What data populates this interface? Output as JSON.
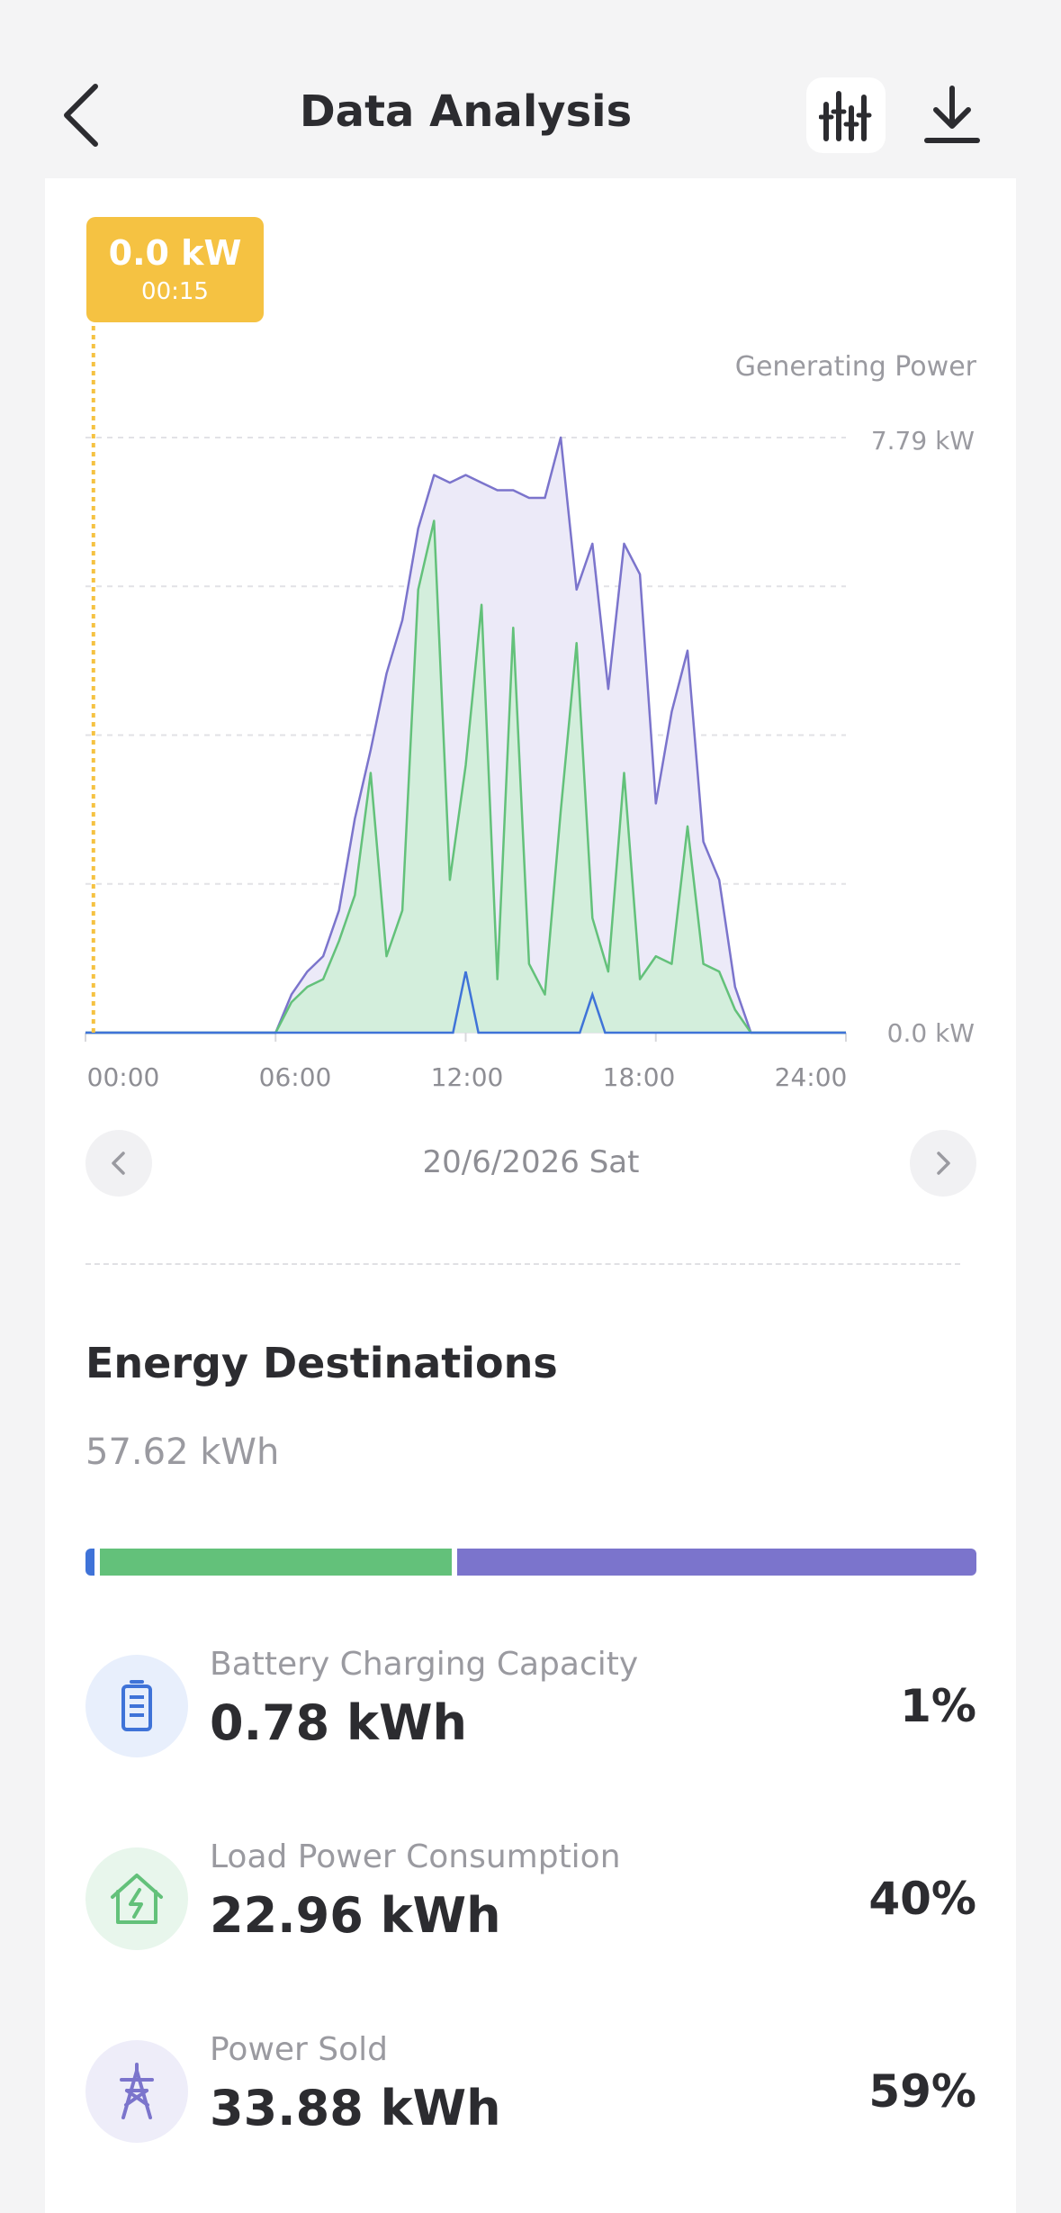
{
  "header": {
    "title": "Data Analysis"
  },
  "tooltip": {
    "value": "0.0 kW",
    "time": "00:15"
  },
  "chart_data": {
    "type": "area",
    "series_label": "Generating Power",
    "y_max_label": "7.79 kW",
    "y_min_label": "0.0 kW",
    "ylim": [
      0,
      7.79
    ],
    "xlim": [
      0,
      24
    ],
    "x_ticks": [
      "00:00",
      "06:00",
      "12:00",
      "18:00",
      "24:00"
    ],
    "cursor_x": 0.25,
    "colors": {
      "total": "#7b74cc",
      "total_fill": "#eceaf8",
      "self_use": "#63c17a",
      "self_use_fill": "#d3eedc",
      "battery": "#3f73d8",
      "cursor": "#f5c242"
    },
    "series": [
      {
        "name": "Generating Power",
        "x": [
          0,
          6,
          6.5,
          7,
          7.5,
          8,
          8.5,
          9,
          9.5,
          10,
          10.5,
          11,
          11.5,
          12,
          12.5,
          13,
          13.5,
          14,
          14.5,
          15,
          15.5,
          16,
          16.5,
          17,
          17.5,
          18,
          18.5,
          19,
          19.5,
          20,
          20.5,
          21,
          24
        ],
        "y": [
          0,
          0,
          0.5,
          0.8,
          1.0,
          1.6,
          2.8,
          3.7,
          4.7,
          5.4,
          6.6,
          7.3,
          7.2,
          7.3,
          7.2,
          7.1,
          7.1,
          7.0,
          7.0,
          7.79,
          5.8,
          6.4,
          4.5,
          6.4,
          6.0,
          3.0,
          4.2,
          5.0,
          2.5,
          2.0,
          0.6,
          0,
          0
        ]
      },
      {
        "name": "Load Power Consumption",
        "x": [
          0,
          6,
          6.5,
          7,
          7.5,
          8,
          8.5,
          9,
          9.5,
          10,
          10.5,
          11,
          11.5,
          12,
          12.5,
          13,
          13.5,
          14,
          14.5,
          15,
          15.5,
          16,
          16.5,
          17,
          17.5,
          18,
          18.5,
          19,
          19.5,
          20,
          20.5,
          21,
          24
        ],
        "y": [
          0,
          0,
          0.4,
          0.6,
          0.7,
          1.2,
          1.8,
          3.4,
          1.0,
          1.6,
          5.8,
          6.7,
          2.0,
          3.5,
          5.6,
          0.7,
          5.3,
          0.9,
          0.5,
          2.9,
          5.1,
          1.5,
          0.8,
          3.4,
          0.7,
          1.0,
          0.9,
          2.7,
          0.9,
          0.8,
          0.3,
          0,
          0
        ]
      },
      {
        "name": "Battery Charging Capacity",
        "x": [
          0,
          6,
          11.6,
          12.0,
          12.4,
          15.6,
          16.0,
          16.4,
          24
        ],
        "y": [
          0,
          0,
          0,
          0.8,
          0,
          0,
          0.5,
          0,
          0
        ]
      }
    ]
  },
  "date_nav": {
    "date": "20/6/2026 Sat"
  },
  "energy": {
    "title": "Energy Destinations",
    "total": "57.62 kWh",
    "items": [
      {
        "label": "Battery Charging Capacity",
        "value": "0.78 kWh",
        "percent": "1%",
        "share": 0.01,
        "color": "#3f73d8",
        "icon": "battery-icon",
        "icon_bg": "#e8effc"
      },
      {
        "label": "Load Power Consumption",
        "value": "22.96 kWh",
        "percent": "40%",
        "share": 0.4,
        "color": "#63c17a",
        "icon": "home-bolt-icon",
        "icon_bg": "#e8f6ec"
      },
      {
        "label": "Power Sold",
        "value": "33.88 kWh",
        "percent": "59%",
        "share": 0.59,
        "color": "#7b74cc",
        "icon": "transmission-tower-icon",
        "icon_bg": "#eeedf9"
      }
    ]
  }
}
